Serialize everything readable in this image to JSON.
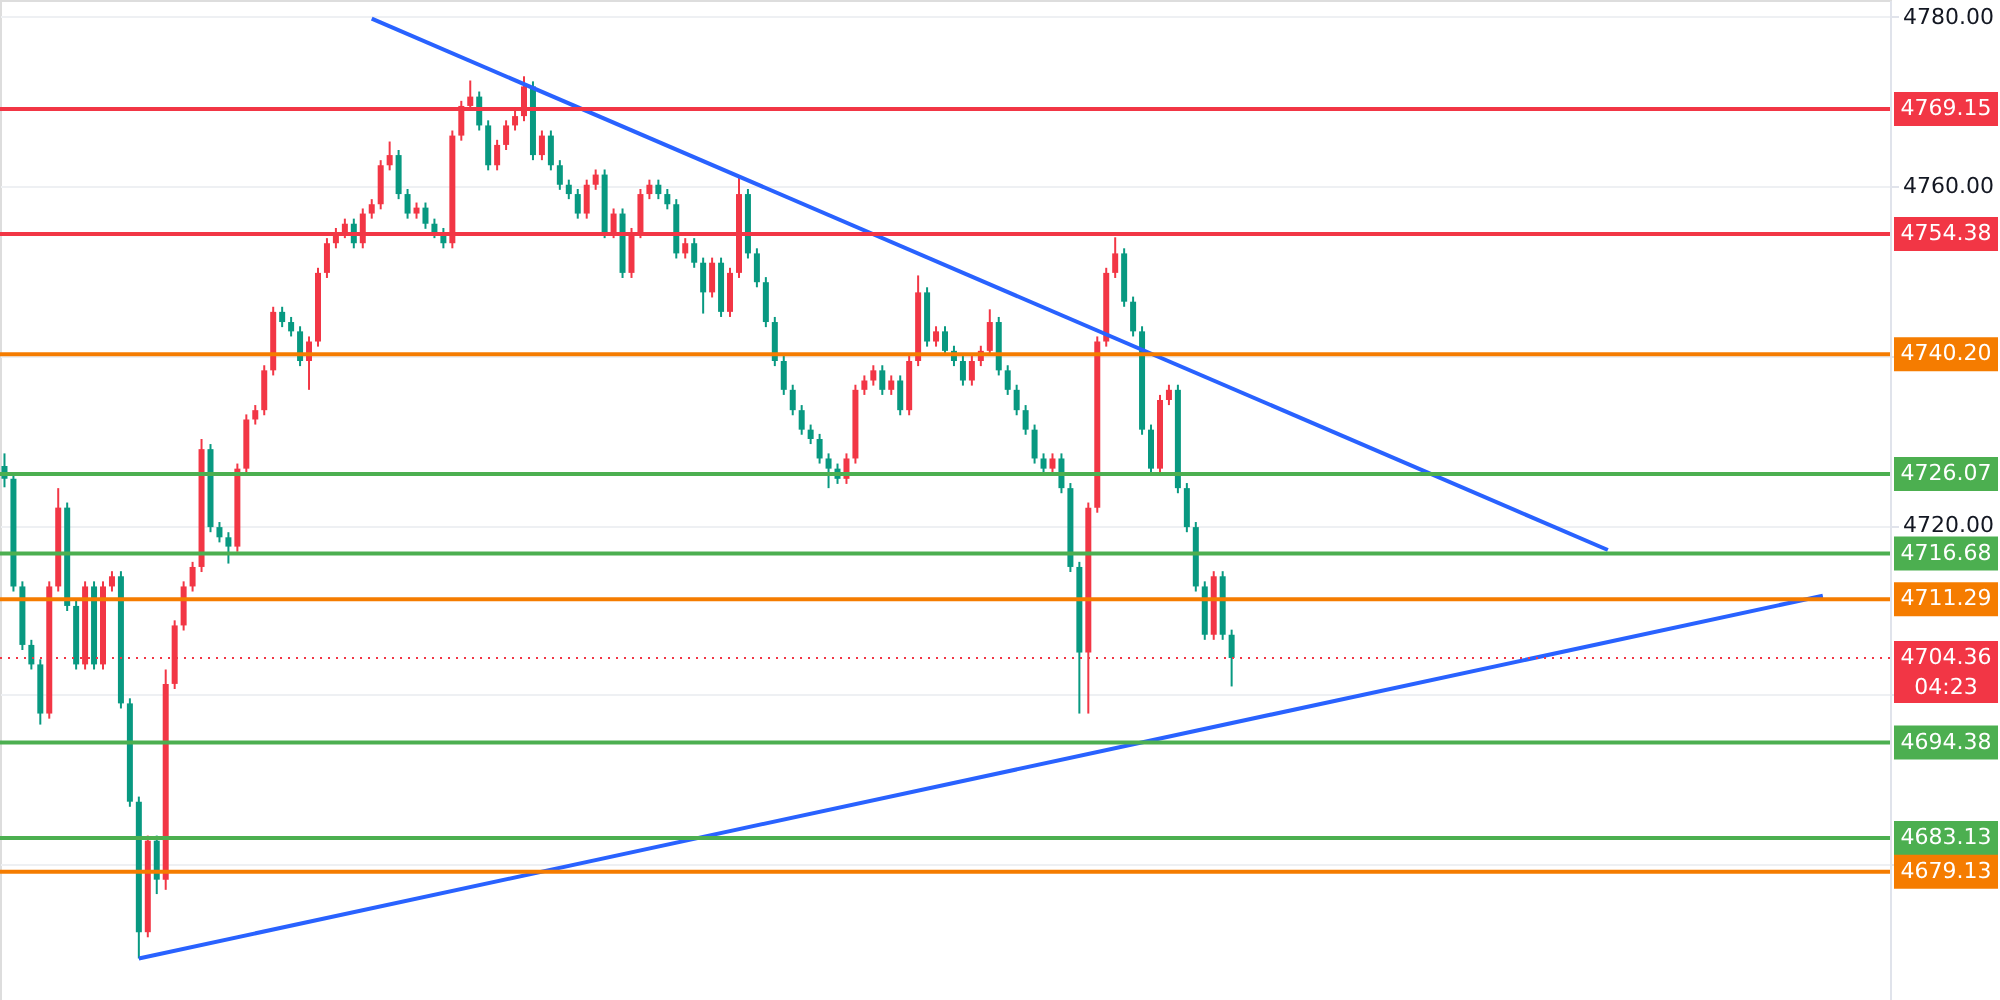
{
  "chart_data": {
    "type": "candlestick",
    "categories": [
      null,
      null,
      null,
      null,
      null,
      null,
      null,
      null,
      null,
      null,
      null,
      null,
      null,
      null,
      null,
      null,
      null,
      null,
      null,
      null,
      null,
      null,
      null,
      null,
      null,
      null,
      null,
      null,
      null,
      null,
      null,
      null,
      null,
      null,
      null,
      null,
      null,
      null,
      null,
      null,
      null,
      null,
      null,
      null,
      null,
      null,
      null,
      null,
      null,
      null,
      null,
      null,
      null,
      null,
      null,
      null,
      null,
      null,
      null,
      null,
      null,
      null,
      null,
      null,
      null,
      null,
      null,
      null,
      null,
      null,
      null,
      null,
      null,
      null,
      null,
      null,
      null,
      null,
      null,
      null,
      null,
      null,
      null,
      null,
      null,
      null,
      null,
      null,
      null,
      null,
      null,
      null,
      null,
      null,
      null,
      null,
      null,
      null,
      null,
      null,
      null,
      null,
      null,
      null,
      null,
      null,
      null,
      null,
      null,
      null,
      null,
      null,
      null,
      null,
      null,
      null,
      null,
      null,
      null,
      null,
      null,
      null,
      null,
      null,
      null,
      null,
      null,
      null,
      null,
      null,
      null,
      null,
      null,
      null,
      null,
      null,
      null,
      null,
      null,
      null,
      null,
      null,
      null,
      null,
      null,
      null,
      null,
      null,
      null,
      null,
      null,
      null,
      null,
      null,
      null,
      null,
      null,
      null,
      null,
      null,
      null,
      null,
      null,
      null,
      null,
      null,
      null,
      null,
      null,
      null,
      null,
      null,
      null,
      null,
      null,
      null,
      null,
      null,
      null,
      null,
      null,
      null,
      null,
      null,
      null,
      null,
      null,
      null,
      null,
      null,
      null,
      null,
      null,
      null,
      null,
      null,
      null,
      null,
      null,
      null,
      null,
      null,
      null,
      null,
      null,
      null,
      null,
      null,
      null,
      null,
      null
    ],
    "ohlc": [
      [
        4727.0,
        4728.5,
        4724.5,
        4725.5
      ],
      [
        4725.5,
        4726.1,
        4712.2,
        4712.8
      ],
      [
        4712.8,
        4713.4,
        4705.3,
        4705.9
      ],
      [
        4705.9,
        4706.5,
        4703.0,
        4703.6
      ],
      [
        4703.6,
        4704.2,
        4696.5,
        4697.8
      ],
      [
        4697.8,
        4713.4,
        4697.2,
        4712.8
      ],
      [
        4712.8,
        4724.4,
        4712.2,
        4722.1
      ],
      [
        4722.1,
        4722.7,
        4709.9,
        4710.5
      ],
      [
        4710.5,
        4711.1,
        4703.0,
        4703.6
      ],
      [
        4703.6,
        4713.4,
        4703.0,
        4712.8
      ],
      [
        4712.8,
        4713.4,
        4703.0,
        4703.6
      ],
      [
        4703.6,
        4713.4,
        4703.0,
        4712.8
      ],
      [
        4712.8,
        4714.6,
        4712.2,
        4714.0
      ],
      [
        4714.0,
        4714.6,
        4698.4,
        4699.0
      ],
      [
        4699.0,
        4699.6,
        4686.8,
        4687.4
      ],
      [
        4687.4,
        4688.0,
        4668.9,
        4672.0
      ],
      [
        4672.0,
        4683.4,
        4671.4,
        4682.8
      ],
      [
        4682.8,
        4683.4,
        4676.5,
        4678.2
      ],
      [
        4678.2,
        4703.0,
        4677.0,
        4701.3
      ],
      [
        4701.3,
        4708.8,
        4700.7,
        4708.2
      ],
      [
        4708.2,
        4713.4,
        4707.6,
        4712.8
      ],
      [
        4712.8,
        4715.7,
        4712.2,
        4715.1
      ],
      [
        4715.1,
        4730.2,
        4714.5,
        4729.0
      ],
      [
        4729.0,
        4729.6,
        4719.2,
        4719.8
      ],
      [
        4719.8,
        4720.4,
        4718.0,
        4718.6
      ],
      [
        4718.6,
        4719.2,
        4715.5,
        4717.5
      ],
      [
        4717.5,
        4727.3,
        4716.9,
        4726.7
      ],
      [
        4726.7,
        4733.1,
        4726.1,
        4732.5
      ],
      [
        4732.5,
        4734.2,
        4731.9,
        4733.6
      ],
      [
        4733.6,
        4738.9,
        4733.0,
        4738.3
      ],
      [
        4738.3,
        4745.8,
        4737.7,
        4745.2
      ],
      [
        4745.2,
        4745.8,
        4743.4,
        4744.0
      ],
      [
        4744.0,
        4744.6,
        4742.3,
        4742.9
      ],
      [
        4742.9,
        4743.5,
        4738.8,
        4739.4
      ],
      [
        4739.4,
        4742.3,
        4736.0,
        4741.7
      ],
      [
        4741.7,
        4750.4,
        4741.1,
        4749.8
      ],
      [
        4749.8,
        4753.9,
        4749.2,
        4753.3
      ],
      [
        4753.3,
        4755.1,
        4752.7,
        4754.5
      ],
      [
        4754.5,
        4756.2,
        4753.9,
        4755.6
      ],
      [
        4755.6,
        4756.2,
        4752.7,
        4753.3
      ],
      [
        4753.3,
        4757.4,
        4752.7,
        4756.8
      ],
      [
        4756.8,
        4758.5,
        4756.2,
        4757.9
      ],
      [
        4757.9,
        4763.1,
        4757.3,
        4762.5
      ],
      [
        4762.5,
        4765.3,
        4761.9,
        4763.7
      ],
      [
        4763.7,
        4764.3,
        4758.5,
        4759.1
      ],
      [
        4759.1,
        4759.7,
        4756.2,
        4756.8
      ],
      [
        4756.8,
        4758.1,
        4756.2,
        4757.5
      ],
      [
        4757.5,
        4758.1,
        4755.0,
        4755.6
      ],
      [
        4755.6,
        4756.2,
        4753.9,
        4754.5
      ],
      [
        4754.5,
        4755.1,
        4752.7,
        4753.3
      ],
      [
        4753.3,
        4766.6,
        4752.7,
        4766.0
      ],
      [
        4766.0,
        4770.1,
        4765.4,
        4769.5
      ],
      [
        4769.5,
        4772.5,
        4768.9,
        4770.6
      ],
      [
        4770.6,
        4771.2,
        4766.6,
        4767.2
      ],
      [
        4767.2,
        4767.8,
        4761.9,
        4762.5
      ],
      [
        4762.5,
        4765.5,
        4761.9,
        4764.9
      ],
      [
        4764.9,
        4767.8,
        4764.3,
        4767.2
      ],
      [
        4767.2,
        4768.9,
        4766.6,
        4768.3
      ],
      [
        4768.3,
        4773.0,
        4767.7,
        4771.8
      ],
      [
        4771.8,
        4772.4,
        4763.1,
        4763.7
      ],
      [
        4763.7,
        4766.6,
        4763.1,
        4766.0
      ],
      [
        4766.0,
        4766.6,
        4761.9,
        4762.5
      ],
      [
        4762.5,
        4763.1,
        4759.6,
        4760.2
      ],
      [
        4760.2,
        4760.8,
        4758.5,
        4759.1
      ],
      [
        4759.1,
        4759.7,
        4756.2,
        4756.8
      ],
      [
        4756.8,
        4760.8,
        4756.2,
        4760.2
      ],
      [
        4760.2,
        4762.0,
        4759.6,
        4761.4
      ],
      [
        4761.4,
        4762.0,
        4753.9,
        4754.5
      ],
      [
        4754.5,
        4757.4,
        4753.9,
        4756.8
      ],
      [
        4756.8,
        4757.4,
        4749.2,
        4749.8
      ],
      [
        4749.8,
        4755.1,
        4749.2,
        4754.5
      ],
      [
        4754.5,
        4759.7,
        4753.9,
        4759.1
      ],
      [
        4759.1,
        4760.8,
        4758.5,
        4760.2
      ],
      [
        4760.2,
        4760.8,
        4758.5,
        4759.1
      ],
      [
        4759.1,
        4759.7,
        4757.3,
        4757.9
      ],
      [
        4757.9,
        4758.5,
        4751.5,
        4752.1
      ],
      [
        4752.1,
        4753.9,
        4751.5,
        4753.3
      ],
      [
        4753.3,
        4753.9,
        4750.4,
        4751.0
      ],
      [
        4751.0,
        4751.6,
        4745.0,
        4747.5
      ],
      [
        4747.5,
        4751.6,
        4746.9,
        4751.0
      ],
      [
        4751.0,
        4751.6,
        4744.6,
        4745.2
      ],
      [
        4745.2,
        4750.4,
        4744.6,
        4749.8
      ],
      [
        4749.8,
        4761.0,
        4749.2,
        4759.1
      ],
      [
        4759.1,
        4759.7,
        4751.5,
        4752.1
      ],
      [
        4752.1,
        4752.7,
        4748.1,
        4748.7
      ],
      [
        4748.7,
        4749.3,
        4743.4,
        4744.0
      ],
      [
        4744.0,
        4744.6,
        4738.8,
        4739.4
      ],
      [
        4739.4,
        4740.0,
        4735.4,
        4736.0
      ],
      [
        4736.0,
        4736.6,
        4733.0,
        4733.6
      ],
      [
        4733.6,
        4734.2,
        4730.7,
        4731.3
      ],
      [
        4731.3,
        4731.9,
        4729.6,
        4730.2
      ],
      [
        4730.2,
        4730.8,
        4727.3,
        4727.9
      ],
      [
        4727.9,
        4728.5,
        4724.4,
        4726.7
      ],
      [
        4726.7,
        4727.3,
        4724.9,
        4725.5
      ],
      [
        4725.5,
        4728.5,
        4724.9,
        4727.9
      ],
      [
        4727.9,
        4736.6,
        4727.3,
        4736.0
      ],
      [
        4736.0,
        4737.7,
        4735.4,
        4737.1
      ],
      [
        4737.1,
        4738.9,
        4736.5,
        4738.3
      ],
      [
        4738.3,
        4738.9,
        4735.4,
        4736.0
      ],
      [
        4736.0,
        4737.7,
        4735.4,
        4737.1
      ],
      [
        4737.1,
        4737.7,
        4733.0,
        4733.6
      ],
      [
        4733.6,
        4740.0,
        4733.0,
        4739.4
      ],
      [
        4739.4,
        4749.5,
        4738.8,
        4747.5
      ],
      [
        4747.5,
        4748.1,
        4741.1,
        4741.7
      ],
      [
        4741.7,
        4743.5,
        4741.1,
        4742.9
      ],
      [
        4742.9,
        4743.5,
        4740.0,
        4740.6
      ],
      [
        4740.6,
        4741.2,
        4738.8,
        4739.4
      ],
      [
        4739.4,
        4740.0,
        4736.5,
        4737.1
      ],
      [
        4737.1,
        4740.0,
        4736.5,
        4739.4
      ],
      [
        4739.4,
        4741.2,
        4738.8,
        4740.6
      ],
      [
        4740.6,
        4745.5,
        4740.0,
        4744.0
      ],
      [
        4744.0,
        4744.6,
        4737.7,
        4738.3
      ],
      [
        4738.3,
        4738.9,
        4735.4,
        4736.0
      ],
      [
        4736.0,
        4736.6,
        4733.0,
        4733.6
      ],
      [
        4733.6,
        4734.2,
        4730.7,
        4731.3
      ],
      [
        4731.3,
        4731.9,
        4727.3,
        4727.9
      ],
      [
        4727.9,
        4728.5,
        4726.1,
        4726.7
      ],
      [
        4726.7,
        4728.5,
        4726.1,
        4727.9
      ],
      [
        4727.9,
        4728.5,
        4723.8,
        4724.4
      ],
      [
        4724.4,
        4725.0,
        4714.5,
        4715.1
      ],
      [
        4715.1,
        4715.7,
        4697.8,
        4705.0
      ],
      [
        4705.0,
        4722.7,
        4697.8,
        4722.1
      ],
      [
        4722.1,
        4742.3,
        4721.5,
        4741.7
      ],
      [
        4741.7,
        4750.4,
        4741.1,
        4749.8
      ],
      [
        4749.8,
        4754.0,
        4749.2,
        4752.1
      ],
      [
        4752.1,
        4752.7,
        4745.8,
        4746.4
      ],
      [
        4746.4,
        4747.0,
        4742.3,
        4742.9
      ],
      [
        4742.9,
        4743.5,
        4730.7,
        4731.3
      ],
      [
        4731.3,
        4731.9,
        4726.1,
        4726.7
      ],
      [
        4726.7,
        4735.4,
        4726.1,
        4734.8
      ],
      [
        4734.8,
        4736.6,
        4734.2,
        4736.0
      ],
      [
        4736.0,
        4736.6,
        4723.8,
        4724.4
      ],
      [
        4724.4,
        4725.0,
        4719.2,
        4719.8
      ],
      [
        4719.8,
        4720.4,
        4712.2,
        4712.8
      ],
      [
        4712.8,
        4713.4,
        4706.5,
        4707.1
      ],
      [
        4707.1,
        4714.6,
        4706.5,
        4714.0
      ],
      [
        4714.0,
        4714.6,
        4706.5,
        4707.1
      ],
      [
        4707.1,
        4707.7,
        4701.0,
        4704.36
      ],
      null,
      null,
      null,
      null,
      null,
      null,
      null,
      null,
      null,
      null,
      null,
      null,
      null,
      null,
      null,
      null,
      null,
      null,
      null,
      null,
      null,
      null,
      null,
      null,
      null,
      null,
      null,
      null,
      null,
      null,
      null,
      null,
      null,
      null,
      null,
      null,
      null,
      null,
      null,
      null,
      null,
      null,
      null,
      null,
      null,
      null,
      null,
      null,
      null,
      null,
      null,
      null,
      null,
      null,
      null,
      null,
      null,
      null,
      null,
      null,
      null,
      null,
      null,
      null,
      null,
      null,
      null,
      null,
      null,
      null,
      null,
      null,
      null
    ],
    "colors": [
      "#089981",
      "#089981",
      "#089981",
      "#089981",
      "#089981",
      "#f23645",
      "#f23645",
      "#089981",
      "#089981",
      "#f23645",
      "#089981",
      "#f23645",
      "#f23645",
      "#089981",
      "#089981",
      "#089981",
      "#f23645",
      "#089981",
      "#f23645",
      "#f23645",
      "#f23645",
      "#f23645",
      "#f23645",
      "#089981",
      "#089981",
      "#089981",
      "#f23645",
      "#f23645",
      "#f23645",
      "#f23645",
      "#f23645",
      "#089981",
      "#089981",
      "#089981",
      "#f23645",
      "#f23645",
      "#f23645",
      "#f23645",
      "#f23645",
      "#089981",
      "#f23645",
      "#f23645",
      "#f23645",
      "#f23645",
      "#089981",
      "#089981",
      "#f23645",
      "#089981",
      "#089981",
      "#089981",
      "#f23645",
      "#f23645",
      "#f23645",
      "#089981",
      "#089981",
      "#f23645",
      "#f23645",
      "#f23645",
      "#f23645",
      "#089981",
      "#f23645",
      "#089981",
      "#089981",
      "#089981",
      "#089981",
      "#f23645",
      "#f23645",
      "#089981",
      "#f23645",
      "#089981",
      "#f23645",
      "#f23645",
      "#f23645",
      "#089981",
      "#089981",
      "#089981",
      "#f23645",
      "#089981",
      "#089981",
      "#f23645",
      "#089981",
      "#f23645",
      "#f23645",
      "#089981",
      "#089981",
      "#089981",
      "#089981",
      "#089981",
      "#089981",
      "#089981",
      "#089981",
      "#089981",
      "#089981",
      "#089981",
      "#f23645",
      "#f23645",
      "#f23645",
      "#f23645",
      "#089981",
      "#f23645",
      "#089981",
      "#f23645",
      "#f23645",
      "#089981",
      "#f23645",
      "#089981",
      "#089981",
      "#089981",
      "#f23645",
      "#f23645",
      "#f23645",
      "#089981",
      "#089981",
      "#089981",
      "#089981",
      "#089981",
      "#089981",
      "#f23645",
      "#089981",
      "#089981",
      "#089981",
      "#f23645",
      "#f23645",
      "#f23645",
      "#f23645",
      "#089981",
      "#089981",
      "#089981",
      "#089981",
      "#f23645",
      "#f23645",
      "#089981",
      "#089981",
      "#089981",
      "#089981",
      "#f23645",
      "#089981",
      "#089981",
      null,
      null,
      null,
      null,
      null,
      null,
      null,
      null,
      null,
      null,
      null,
      null,
      null,
      null,
      null,
      null,
      null,
      null,
      null,
      null,
      null,
      null,
      null,
      null,
      null,
      null,
      null,
      null,
      null,
      null,
      null,
      null,
      null,
      null,
      null,
      null,
      null,
      null,
      null,
      null,
      null,
      null,
      null,
      null,
      null,
      null,
      null,
      null,
      null,
      null,
      null,
      null,
      null,
      null,
      null,
      null,
      null,
      null,
      null,
      null,
      null,
      null,
      null,
      null,
      null,
      null,
      null,
      null,
      null,
      null,
      null,
      null,
      null
    ],
    "series": [
      {
        "type": "line",
        "color": "#2962ff",
        "values": [
          null,
          null,
          null,
          null,
          null,
          null,
          null,
          null,
          null,
          null,
          null,
          null,
          null,
          null,
          null,
          null,
          null,
          null,
          null,
          null,
          null,
          null,
          null,
          null,
          null,
          null,
          null,
          null,
          null,
          null,
          null,
          null,
          null,
          null,
          null,
          null,
          null,
          null,
          null,
          null,
          null,
          4779.8,
          null,
          null,
          null,
          null,
          null,
          null,
          null,
          null,
          null,
          null,
          null,
          null,
          null,
          null,
          null,
          null,
          null,
          null,
          null,
          null,
          null,
          null,
          null,
          null,
          null,
          null,
          null,
          null,
          null,
          null,
          null,
          null,
          null,
          null,
          null,
          null,
          null,
          null,
          null,
          null,
          null,
          null,
          null,
          null,
          null,
          null,
          null,
          null,
          null,
          null,
          null,
          null,
          null,
          null,
          null,
          null,
          null,
          null,
          null,
          null,
          null,
          null,
          null,
          null,
          null,
          null,
          null,
          null,
          null,
          null,
          null,
          null,
          null,
          null,
          null,
          null,
          null,
          null,
          null,
          null,
          null,
          null,
          null,
          null,
          null,
          null,
          null,
          null,
          null,
          null,
          null,
          null,
          null,
          null,
          null,
          null,
          null,
          null,
          null,
          null,
          null,
          null,
          null,
          null,
          null,
          null,
          null,
          null,
          null,
          null,
          null,
          null,
          null,
          null,
          null,
          null,
          null,
          null,
          null,
          null,
          null,
          null,
          null,
          null,
          null,
          null,
          null,
          null,
          null,
          null,
          null,
          null,
          null,
          null,
          null,
          null,
          null,
          4717.1,
          null,
          null,
          null,
          null,
          null,
          null,
          null,
          null,
          null,
          null,
          null,
          null,
          null,
          null,
          null,
          null,
          null,
          null,
          null,
          null,
          null,
          null,
          null,
          null,
          null,
          null,
          null,
          null,
          null,
          null,
          null
        ]
      },
      {
        "type": "line",
        "color": "#2962ff",
        "values": [
          null,
          null,
          null,
          null,
          null,
          null,
          null,
          null,
          null,
          null,
          null,
          null,
          null,
          null,
          null,
          4668.9,
          null,
          null,
          null,
          null,
          null,
          null,
          null,
          null,
          null,
          null,
          null,
          null,
          null,
          null,
          null,
          null,
          null,
          null,
          null,
          null,
          null,
          null,
          null,
          null,
          null,
          null,
          null,
          null,
          null,
          null,
          null,
          null,
          null,
          null,
          null,
          null,
          null,
          null,
          null,
          null,
          null,
          null,
          null,
          null,
          null,
          null,
          null,
          null,
          null,
          null,
          null,
          null,
          null,
          null,
          null,
          null,
          null,
          null,
          null,
          null,
          null,
          null,
          null,
          null,
          null,
          null,
          null,
          null,
          null,
          null,
          null,
          null,
          null,
          null,
          null,
          null,
          null,
          null,
          null,
          null,
          null,
          null,
          null,
          null,
          null,
          null,
          null,
          null,
          null,
          null,
          null,
          null,
          null,
          null,
          null,
          null,
          null,
          null,
          null,
          null,
          null,
          null,
          null,
          null,
          null,
          null,
          null,
          null,
          null,
          null,
          null,
          null,
          null,
          null,
          null,
          null,
          null,
          null,
          null,
          null,
          null,
          null,
          null,
          null,
          null,
          null,
          null,
          null,
          null,
          null,
          null,
          null,
          null,
          null,
          null,
          null,
          null,
          null,
          null,
          null,
          null,
          null,
          null,
          null,
          null,
          null,
          null,
          null,
          null,
          null,
          null,
          null,
          null,
          null,
          null,
          null,
          null,
          null,
          null,
          null,
          null,
          null,
          null,
          null,
          null,
          null,
          null,
          null,
          null,
          null,
          null,
          null,
          null,
          null,
          null,
          null,
          null,
          null,
          null,
          null,
          null,
          null,
          null,
          null,
          null,
          null,
          null,
          4711.7,
          null,
          null,
          null,
          null,
          null,
          null,
          null
        ]
      }
    ],
    "ylim": [
      4664,
      4782
    ],
    "yticks": [
      {
        "value": 4680,
        "label": null
      },
      {
        "value": 4700,
        "label": null
      },
      {
        "value": 4720,
        "label": "4720.00"
      },
      {
        "value": 4740,
        "label": null
      },
      {
        "value": 4760,
        "label": "4760.00"
      },
      {
        "value": 4780,
        "label": "4780.00"
      }
    ],
    "tick_labels": "y",
    "grid": "y",
    "ref_lines": [
      {
        "axis": "y",
        "value": 4769.15,
        "label": "4769.15",
        "color": "#f23645"
      },
      {
        "axis": "y",
        "value": 4754.38,
        "label": "4754.38",
        "color": "#f23645"
      },
      {
        "axis": "y",
        "value": 4740.2,
        "label": "4740.20",
        "color": "#f57c00"
      },
      {
        "axis": "y",
        "value": 4726.07,
        "label": "4726.07",
        "color": "#4caf50"
      },
      {
        "axis": "y",
        "value": 4716.68,
        "label": "4716.68",
        "color": "#4caf50"
      },
      {
        "axis": "y",
        "value": 4711.29,
        "label": "4711.29",
        "color": "#f57c00"
      },
      {
        "axis": "y",
        "value": 4704.36,
        "label": "4704.36",
        "color": "#f23645",
        "line_style": "dotted"
      },
      {
        "axis": "y",
        "value": 4694.38,
        "label": "4694.38",
        "color": "#4caf50"
      },
      {
        "axis": "y",
        "value": 4683.13,
        "label": "4683.13",
        "color": "#4caf50"
      },
      {
        "axis": "y",
        "value": 4679.13,
        "label": "4679.13",
        "color": "#f57c00"
      }
    ],
    "annotations": [
      "04:23"
    ]
  }
}
